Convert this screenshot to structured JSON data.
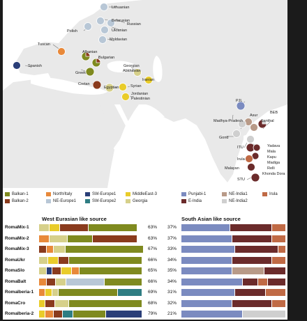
{
  "map": {
    "labels": {
      "lithuanian": "Lithuanian",
      "belarusian": "Belarusian",
      "russian": "Russian",
      "polish": "Polish",
      "ukranian": "Ukranian",
      "moldavian": "Moldavian",
      "tuscan": "Tuscan",
      "albanian": "Albanian",
      "spanish": "Spanish",
      "bulgarian": "Bulgarian",
      "greek": "Greek",
      "georgian_abkhasian": [
        "Georgian",
        "Abkhasian"
      ],
      "cretan": "Cretan",
      "iranian": "Iranian",
      "syrian": "Syrian",
      "egyptian": "Egyptian",
      "jordanian_palestinian": [
        "Jordanian",
        "Palestinian"
      ],
      "pjl": "PJL",
      "beb": "BEB",
      "asur": "Asur",
      "madhya_pradesh": "Madhya-Pradesh",
      "santhal": "Santhal",
      "gond": "Gond",
      "itu": "ITU",
      "yadava": "Yadava",
      "mala": "Mala",
      "kapu": "Kapu",
      "madiga": "Madiga",
      "relli": "Relli",
      "khonda_dora": "Khonda Dora",
      "irula": "Irula",
      "malayan": "Malayan",
      "stu": "STU"
    }
  },
  "legend": {
    "items": [
      {
        "label": "Balkan-1",
        "color": "#7f8a1f"
      },
      {
        "label": "Balkan-2",
        "color": "#8a3b1d"
      },
      {
        "label": "North/Italy",
        "color": "#e8893a"
      },
      {
        "label": "NE-Europe1",
        "color": "#b8c7d6"
      },
      {
        "label": "SW-Europe1",
        "color": "#2a3e78"
      },
      {
        "label": "SW-Europe2",
        "color": "#2f7d83"
      },
      {
        "label": "MiddleEast-3",
        "color": "#e9cc2a"
      },
      {
        "label": "Georgia",
        "color": "#d6d08a"
      },
      {
        "label": "Punjabi-1",
        "color": "#7b8bc0"
      },
      {
        "label": "E-India",
        "color": "#6b2b2b"
      },
      {
        "label": "NE-India1",
        "color": "#b89a88"
      },
      {
        "label": "NE-India2",
        "color": "#cfcfcf"
      },
      {
        "label": "Irula",
        "color": "#c06a45"
      }
    ]
  },
  "headers": {
    "west": "West Eurasian like source",
    "south": "South Asian  like source"
  },
  "rows": [
    {
      "name": "RomaMix-1",
      "west_pct": "63%",
      "south_pct": "37%",
      "west": [
        [
          "#d6d08a",
          8
        ],
        [
          "#e9cc2a",
          8
        ],
        [
          "#8a3b1d",
          22
        ],
        [
          "#7f8a1f",
          37
        ]
      ],
      "south": [
        [
          "#7b8bc0",
          38
        ],
        [
          "#6b2b2b",
          33
        ],
        [
          "#c06a45",
          11
        ]
      ]
    },
    {
      "name": "RomaMix-2",
      "west_pct": "63%",
      "south_pct": "37%",
      "west": [
        [
          "#e8893a",
          8
        ],
        [
          "#d6d08a",
          14
        ],
        [
          "#7f8a1f",
          19
        ],
        [
          "#8a3b1d",
          34
        ]
      ],
      "south": [
        [
          "#7b8bc0",
          40
        ],
        [
          "#6b2b2b",
          31
        ],
        [
          "#c06a45",
          11
        ]
      ]
    },
    {
      "name": "RomaMix-3",
      "west_pct": "67%",
      "south_pct": "33%",
      "west": [
        [
          "#8a3b1d",
          6
        ],
        [
          "#e8893a",
          5
        ],
        [
          "#d6d08a",
          9
        ],
        [
          "#7f8a1f",
          60
        ]
      ],
      "south": [
        [
          "#7b8bc0",
          42
        ],
        [
          "#6b2b2b",
          34
        ],
        [
          "#c06a45",
          6
        ]
      ]
    },
    {
      "name": "RomaUkr",
      "west_pct": "66%",
      "south_pct": "34%",
      "west": [
        [
          "#d6d08a",
          7
        ],
        [
          "#e9cc2a",
          8
        ],
        [
          "#8a3b1d",
          8
        ],
        [
          "#7f8a1f",
          56
        ]
      ],
      "south": [
        [
          "#7b8bc0",
          40
        ],
        [
          "#6b2b2b",
          31
        ],
        [
          "#c06a45",
          11
        ]
      ]
    },
    {
      "name": "RomaSlo",
      "west_pct": "65%",
      "south_pct": "35%",
      "west": [
        [
          "#d6d08a",
          6
        ],
        [
          "#2a3e78",
          4
        ],
        [
          "#8a3b1d",
          7
        ],
        [
          "#e9cc2a",
          8
        ],
        [
          "#e8893a",
          6
        ],
        [
          "#7f8a1f",
          48
        ]
      ],
      "south": [
        [
          "#7b8bc0",
          40
        ],
        [
          "#b89a88",
          25
        ],
        [
          "#6b2b2b",
          17
        ]
      ]
    },
    {
      "name": "RomaBalt",
      "west_pct": "66%",
      "south_pct": "34%",
      "west": [
        [
          "#e8893a",
          6
        ],
        [
          "#8a3b1d",
          7
        ],
        [
          "#d6d08a",
          8
        ],
        [
          "#b8c7d6",
          29
        ],
        [
          "#7f8a1f",
          29
        ]
      ],
      "south": [
        [
          "#7b8bc0",
          48
        ],
        [
          "#6b2b2b",
          12
        ],
        [
          "#c06a45",
          8
        ],
        [
          "#6b2b2b",
          14
        ]
      ]
    },
    {
      "name": "RomaIberia-1",
      "west_pct": "69%",
      "south_pct": "31%",
      "west": [
        [
          "#e8893a",
          5
        ],
        [
          "#e9cc2a",
          5
        ],
        [
          "#d6d08a",
          5
        ],
        [
          "#7f8a1f",
          45
        ],
        [
          "#2f7d83",
          19
        ]
      ],
      "south": [
        [
          "#7b8bc0",
          42
        ],
        [
          "#6b2b2b",
          24
        ],
        [
          "#c06a45",
          16
        ]
      ]
    },
    {
      "name": "RomaCro",
      "west_pct": "68%",
      "south_pct": "32%",
      "west": [
        [
          "#e9cc2a",
          5
        ],
        [
          "#8a3b1d",
          7
        ],
        [
          "#d6d08a",
          11
        ],
        [
          "#7f8a1f",
          56
        ]
      ],
      "south": [
        [
          "#7b8bc0",
          40
        ],
        [
          "#6b2b2b",
          31
        ],
        [
          "#c06a45",
          11
        ]
      ]
    },
    {
      "name": "RomaIberia-2",
      "west_pct": "79%",
      "south_pct": "21%",
      "west": [
        [
          "#e9cc2a",
          5
        ],
        [
          "#e8893a",
          6
        ],
        [
          "#8a3b1d",
          7
        ],
        [
          "#2f7d83",
          8
        ],
        [
          "#7f8a1f",
          25
        ],
        [
          "#2a3e78",
          28
        ]
      ],
      "south": [
        [
          "#7b8bc0",
          48
        ],
        [
          "#cfcfcf",
          34
        ]
      ]
    }
  ]
}
